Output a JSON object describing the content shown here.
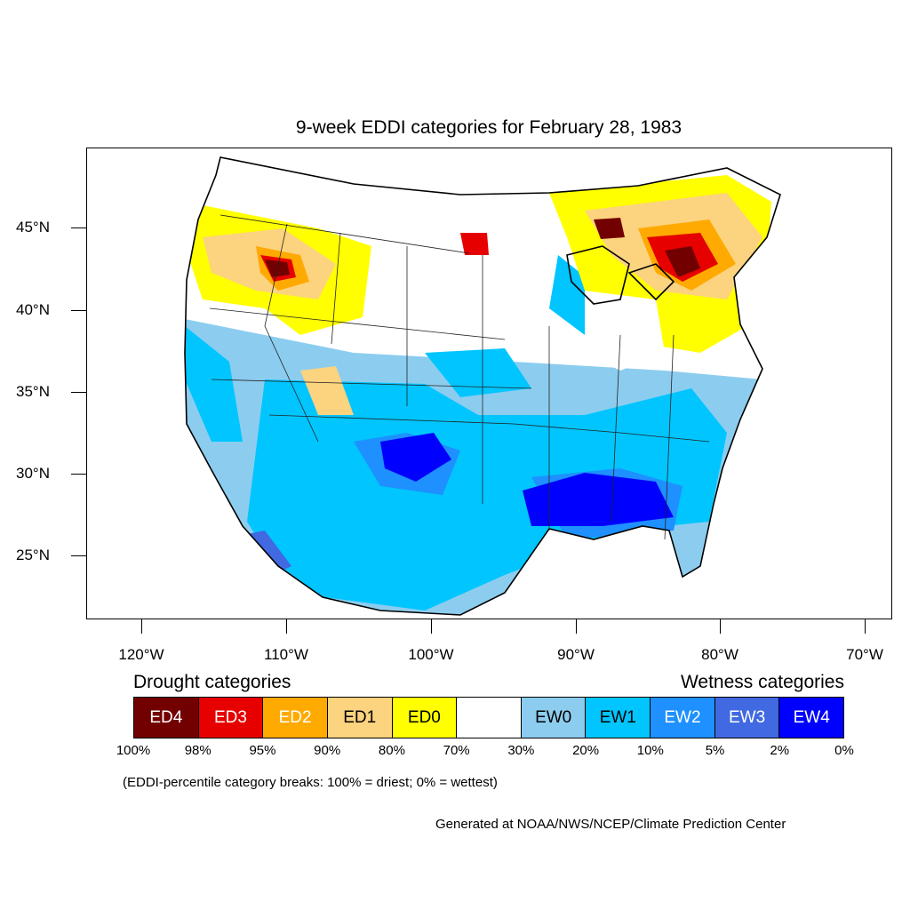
{
  "title": "9-week EDDI categories for February 28, 1983",
  "map": {
    "lat_labels": [
      "45°N",
      "40°N",
      "35°N",
      "30°N",
      "25°N"
    ],
    "lon_labels": [
      "120°W",
      "110°W",
      "100°W",
      "90°W",
      "80°W",
      "70°W"
    ]
  },
  "legend": {
    "drought_heading": "Drought categories",
    "wetness_heading": "Wetness categories",
    "categories": [
      {
        "label": "ED4",
        "color": "#730000",
        "text_color": "#ffffff"
      },
      {
        "label": "ED3",
        "color": "#e60000",
        "text_color": "#ffffff"
      },
      {
        "label": "ED2",
        "color": "#ffaa00",
        "text_color": "#ffffff"
      },
      {
        "label": "ED1",
        "color": "#fcd37f",
        "text_color": "#000000"
      },
      {
        "label": "ED0",
        "color": "#ffff00",
        "text_color": "#000000"
      },
      {
        "label": "",
        "color": "#ffffff",
        "text_color": "#000000"
      },
      {
        "label": "EW0",
        "color": "#8ccdef",
        "text_color": "#000000"
      },
      {
        "label": "EW1",
        "color": "#00c5ff",
        "text_color": "#000000"
      },
      {
        "label": "EW2",
        "color": "#1e90ff",
        "text_color": "#ffffff"
      },
      {
        "label": "EW3",
        "color": "#4169e1",
        "text_color": "#ffffff"
      },
      {
        "label": "EW4",
        "color": "#0000ff",
        "text_color": "#ffffff"
      }
    ],
    "breaks": [
      "100%",
      "98%",
      "95%",
      "90%",
      "80%",
      "70%",
      "30%",
      "20%",
      "10%",
      "5%",
      "2%",
      "0%"
    ]
  },
  "note": "(EDDI-percentile category breaks: 100% = driest; 0% = wettest)",
  "credit": "Generated at NOAA/NWS/NCEP/Climate Prediction Center"
}
